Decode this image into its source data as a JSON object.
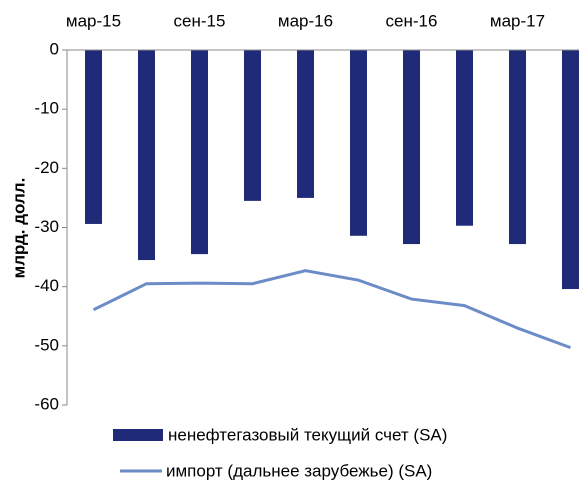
{
  "chart_data": {
    "type": "bar",
    "categories": [
      "мар-15",
      null,
      "сен-15",
      null,
      "мар-16",
      null,
      "сен-16",
      null,
      "мар-17",
      null
    ],
    "ylabel": "млрд. долл.",
    "ylim": [
      -60,
      0
    ],
    "yticks": [
      0,
      -10,
      -20,
      -30,
      -40,
      -50,
      -60
    ],
    "grid": false,
    "series": [
      {
        "name": "ненефтегазовый текущий счет (SA)",
        "type": "bar",
        "color": "#1f2a78",
        "values": [
          -29.4,
          -35.5,
          -34.5,
          -25.5,
          -25,
          -31.4,
          -32.8,
          -29.7,
          -32.8,
          -40.4
        ]
      },
      {
        "name": "импорт (дальнее зарубежье) (SA)",
        "type": "line",
        "color": "#6b8cc7",
        "values": [
          -43.9,
          -39.5,
          -39.4,
          -39.5,
          -37.3,
          -38.9,
          -42.1,
          -43.2,
          -47,
          -50.3
        ]
      }
    ]
  }
}
